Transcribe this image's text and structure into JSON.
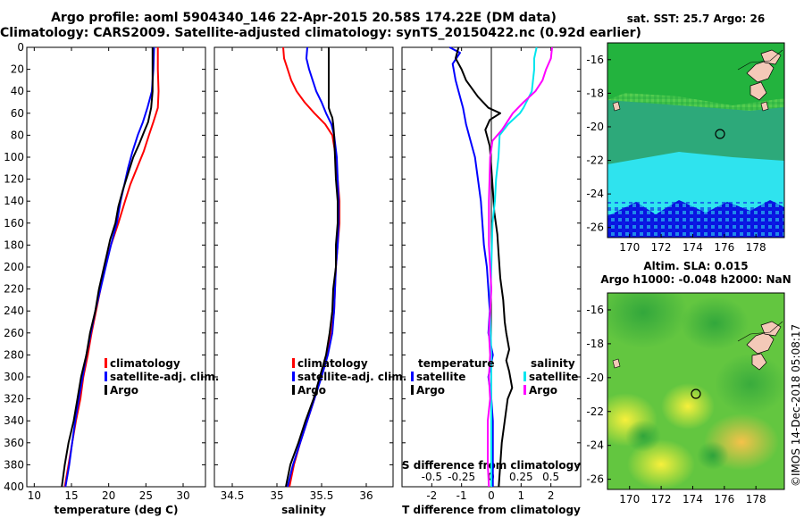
{
  "header": {
    "line1": "Argo profile: aoml 5904340_146 22-Apr-2015 20.58S 174.22E (DM data)",
    "line2": "Climatology: CARS2009. Satellite-adjusted climatology: synTS_20150422.nc (0.92d earlier)"
  },
  "colors": {
    "climatology": "#ff0000",
    "satellite": "#0000ff",
    "argo": "#000000",
    "sat_salinity": "#00e5ee",
    "clim_salinity": "#ff00ff"
  },
  "chart_data": [
    {
      "type": "line",
      "title": "temperature profile",
      "xlabel": "temperature (deg C)",
      "ylabel": "depth",
      "xlim": [
        9,
        33
      ],
      "ylim": [
        0,
        400
      ],
      "x_ticks": [
        "10",
        "15",
        "20",
        "25",
        "30"
      ],
      "y_ticks": [
        "0",
        "20",
        "40",
        "60",
        "80",
        "100",
        "120",
        "140",
        "160",
        "180",
        "200",
        "220",
        "240",
        "260",
        "280",
        "300",
        "320",
        "340",
        "360",
        "380",
        "400"
      ],
      "series": [
        {
          "name": "climatology",
          "color": "#ff0000",
          "points": [
            [
              26.6,
              0
            ],
            [
              26.6,
              20
            ],
            [
              26.7,
              40
            ],
            [
              26.6,
              55
            ],
            [
              26.0,
              68
            ],
            [
              25.4,
              80
            ],
            [
              24.7,
              95
            ],
            [
              23.8,
              110
            ],
            [
              22.9,
              125
            ],
            [
              22.2,
              140
            ],
            [
              21.3,
              160
            ],
            [
              20.3,
              180
            ],
            [
              19.5,
              200
            ],
            [
              18.9,
              220
            ],
            [
              18.3,
              240
            ],
            [
              17.7,
              260
            ],
            [
              17.2,
              280
            ],
            [
              16.6,
              300
            ],
            [
              16.2,
              320
            ],
            [
              15.6,
              340
            ],
            [
              15.1,
              360
            ],
            [
              14.6,
              380
            ],
            [
              14.1,
              400
            ]
          ]
        },
        {
          "name": "satellite-adj. clim.",
          "color": "#0000ff",
          "points": [
            [
              26.1,
              0
            ],
            [
              26.0,
              20
            ],
            [
              25.8,
              40
            ],
            [
              25.2,
              55
            ],
            [
              24.6,
              68
            ],
            [
              23.9,
              80
            ],
            [
              23.2,
              95
            ],
            [
              22.6,
              110
            ],
            [
              22.1,
              125
            ],
            [
              21.6,
              140
            ],
            [
              21.1,
              160
            ],
            [
              20.3,
              180
            ],
            [
              19.6,
              200
            ],
            [
              18.9,
              220
            ],
            [
              18.2,
              240
            ],
            [
              17.6,
              260
            ],
            [
              17.0,
              280
            ],
            [
              16.5,
              300
            ],
            [
              16.0,
              320
            ],
            [
              15.5,
              340
            ],
            [
              15.1,
              360
            ],
            [
              14.7,
              380
            ],
            [
              14.2,
              400
            ]
          ]
        },
        {
          "name": "Argo",
          "color": "#000000",
          "points": [
            [
              25.9,
              0
            ],
            [
              25.9,
              20
            ],
            [
              25.9,
              40
            ],
            [
              25.7,
              55
            ],
            [
              25.3,
              68
            ],
            [
              24.8,
              76
            ],
            [
              24.1,
              88
            ],
            [
              23.3,
              100
            ],
            [
              22.6,
              115
            ],
            [
              21.9,
              130
            ],
            [
              21.3,
              145
            ],
            [
              20.9,
              160
            ],
            [
              20.2,
              175
            ],
            [
              19.7,
              190
            ],
            [
              19.2,
              205
            ],
            [
              18.7,
              220
            ],
            [
              18.2,
              240
            ],
            [
              17.5,
              260
            ],
            [
              17.0,
              280
            ],
            [
              16.3,
              300
            ],
            [
              15.8,
              320
            ],
            [
              15.3,
              340
            ],
            [
              14.6,
              360
            ],
            [
              14.1,
              380
            ],
            [
              13.7,
              400
            ]
          ]
        }
      ],
      "legend": [
        "climatology",
        "satellite-adj. clim.",
        "Argo"
      ],
      "legend_position": "bottom-right"
    },
    {
      "type": "line",
      "title": "salinity profile",
      "xlabel": "salinity",
      "ylabel": "depth",
      "xlim": [
        34.3,
        36.3
      ],
      "ylim": [
        0,
        400
      ],
      "x_ticks": [
        "34.5",
        "35",
        "35.5",
        "36"
      ],
      "series": [
        {
          "name": "climatology",
          "color": "#ff0000",
          "points": [
            [
              35.07,
              0
            ],
            [
              35.08,
              10
            ],
            [
              35.12,
              20
            ],
            [
              35.16,
              30
            ],
            [
              35.22,
              40
            ],
            [
              35.31,
              50
            ],
            [
              35.42,
              60
            ],
            [
              35.54,
              70
            ],
            [
              35.62,
              80
            ],
            [
              35.66,
              100
            ],
            [
              35.68,
              120
            ],
            [
              35.7,
              140
            ],
            [
              35.7,
              160
            ],
            [
              35.68,
              180
            ],
            [
              35.66,
              200
            ],
            [
              35.65,
              220
            ],
            [
              35.64,
              240
            ],
            [
              35.61,
              260
            ],
            [
              35.56,
              280
            ],
            [
              35.49,
              300
            ],
            [
              35.42,
              320
            ],
            [
              35.34,
              340
            ],
            [
              35.26,
              360
            ],
            [
              35.19,
              380
            ],
            [
              35.14,
              400
            ]
          ]
        },
        {
          "name": "satellite-adj. clim.",
          "color": "#0000ff",
          "points": [
            [
              35.34,
              0
            ],
            [
              35.33,
              10
            ],
            [
              35.36,
              20
            ],
            [
              35.4,
              30
            ],
            [
              35.44,
              40
            ],
            [
              35.5,
              50
            ],
            [
              35.55,
              60
            ],
            [
              35.61,
              70
            ],
            [
              35.64,
              80
            ],
            [
              35.67,
              100
            ],
            [
              35.68,
              120
            ],
            [
              35.69,
              140
            ],
            [
              35.69,
              160
            ],
            [
              35.68,
              180
            ],
            [
              35.66,
              200
            ],
            [
              35.65,
              220
            ],
            [
              35.64,
              240
            ],
            [
              35.62,
              260
            ],
            [
              35.57,
              280
            ],
            [
              35.5,
              300
            ],
            [
              35.42,
              320
            ],
            [
              35.34,
              340
            ],
            [
              35.26,
              360
            ],
            [
              35.18,
              380
            ],
            [
              35.12,
              400
            ]
          ]
        },
        {
          "name": "Argo",
          "color": "#000000",
          "points": [
            [
              35.58,
              0
            ],
            [
              35.58,
              20
            ],
            [
              35.58,
              40
            ],
            [
              35.58,
              55
            ],
            [
              35.6,
              60
            ],
            [
              35.62,
              64
            ],
            [
              35.63,
              70
            ],
            [
              35.64,
              80
            ],
            [
              35.65,
              100
            ],
            [
              35.66,
              120
            ],
            [
              35.68,
              140
            ],
            [
              35.68,
              160
            ],
            [
              35.66,
              180
            ],
            [
              35.66,
              200
            ],
            [
              35.63,
              220
            ],
            [
              35.62,
              240
            ],
            [
              35.59,
              260
            ],
            [
              35.55,
              280
            ],
            [
              35.48,
              300
            ],
            [
              35.41,
              320
            ],
            [
              35.32,
              340
            ],
            [
              35.24,
              360
            ],
            [
              35.15,
              380
            ],
            [
              35.1,
              400
            ]
          ]
        }
      ],
      "legend": [
        "climatology",
        "satellite-adj. clim.",
        "Argo"
      ],
      "legend_position": "bottom-right"
    },
    {
      "type": "line",
      "title": "difference from climatology",
      "xlabel": "T difference from climatology",
      "x2label": "S difference from climatology",
      "xlim": [
        -3,
        3
      ],
      "ylim": [
        0,
        400
      ],
      "x_ticks": [
        "-2",
        "-1",
        "0",
        "1",
        "2"
      ],
      "x2_ticks": [
        "-0.5",
        "-0.25",
        "0",
        "0.25",
        "0.5"
      ],
      "series": [
        {
          "name": "T satellite",
          "color": "#0000ff",
          "points": [
            [
              -1.4,
              0
            ],
            [
              -1.05,
              5
            ],
            [
              -1.3,
              15
            ],
            [
              -1.2,
              30
            ],
            [
              -1.1,
              40
            ],
            [
              -0.95,
              55
            ],
            [
              -0.85,
              70
            ],
            [
              -0.7,
              85
            ],
            [
              -0.55,
              100
            ],
            [
              -0.45,
              120
            ],
            [
              -0.35,
              140
            ],
            [
              -0.3,
              160
            ],
            [
              -0.25,
              180
            ],
            [
              -0.15,
              200
            ],
            [
              -0.1,
              220
            ],
            [
              -0.05,
              240
            ],
            [
              -0.1,
              260
            ],
            [
              0.05,
              280
            ],
            [
              -0.1,
              300
            ],
            [
              0.0,
              320
            ],
            [
              0.05,
              340
            ],
            [
              0.05,
              360
            ],
            [
              0.05,
              380
            ],
            [
              0.05,
              400
            ]
          ]
        },
        {
          "name": "T Argo",
          "color": "#000000",
          "points": [
            [
              -1.1,
              0
            ],
            [
              -1.2,
              10
            ],
            [
              -1.0,
              20
            ],
            [
              -0.85,
              30
            ],
            [
              -0.45,
              45
            ],
            [
              -0.1,
              55
            ],
            [
              0.3,
              60
            ],
            [
              -0.05,
              66
            ],
            [
              -0.2,
              75
            ],
            [
              -0.05,
              90
            ],
            [
              0.0,
              110
            ],
            [
              0.05,
              130
            ],
            [
              0.1,
              150
            ],
            [
              0.2,
              170
            ],
            [
              0.25,
              190
            ],
            [
              0.3,
              210
            ],
            [
              0.4,
              230
            ],
            [
              0.45,
              250
            ],
            [
              0.5,
              260
            ],
            [
              0.6,
              275
            ],
            [
              0.5,
              285
            ],
            [
              0.6,
              295
            ],
            [
              0.7,
              310
            ],
            [
              0.55,
              320
            ],
            [
              0.45,
              340
            ],
            [
              0.35,
              360
            ],
            [
              0.3,
              380
            ],
            [
              0.25,
              400
            ]
          ]
        },
        {
          "name": "S satellite",
          "color": "#00e5ee",
          "points": [
            [
              0.38,
              0
            ],
            [
              0.36,
              10
            ],
            [
              0.36,
              20
            ],
            [
              0.34,
              40
            ],
            [
              0.27,
              55
            ],
            [
              0.24,
              60
            ],
            [
              0.14,
              70
            ],
            [
              0.07,
              80
            ],
            [
              0.06,
              100
            ],
            [
              0.04,
              120
            ],
            [
              0.03,
              140
            ],
            [
              0.01,
              160
            ],
            [
              0.0,
              200
            ],
            [
              -0.01,
              240
            ],
            [
              0.0,
              280
            ],
            [
              0.0,
              320
            ],
            [
              0.0,
              360
            ],
            [
              0.0,
              400
            ]
          ]
        },
        {
          "name": "S Argo",
          "color": "#ff00ff",
          "points": [
            [
              0.51,
              0
            ],
            [
              0.5,
              10
            ],
            [
              0.46,
              20
            ],
            [
              0.43,
              30
            ],
            [
              0.37,
              40
            ],
            [
              0.27,
              50
            ],
            [
              0.18,
              60
            ],
            [
              0.09,
              75
            ],
            [
              0.01,
              85
            ],
            [
              -0.01,
              100
            ],
            [
              -0.02,
              140
            ],
            [
              -0.02,
              180
            ],
            [
              0.0,
              220
            ],
            [
              -0.02,
              260
            ],
            [
              -0.01,
              280
            ],
            [
              -0.02,
              300
            ],
            [
              -0.01,
              320
            ],
            [
              -0.03,
              340
            ],
            [
              -0.03,
              360
            ],
            [
              -0.03,
              380
            ],
            [
              -0.02,
              400
            ]
          ]
        }
      ],
      "legend_temperature": [
        "temperature",
        "satellite",
        "Argo"
      ],
      "legend_salinity": [
        "salinity",
        "satellite",
        "Argo"
      ]
    }
  ],
  "map_sst": {
    "caption": "sat. SST: 25.7 Argo: 26",
    "lat_ticks": [
      "-16",
      "-18",
      "-20",
      "-22",
      "-24",
      "-26"
    ],
    "lon_ticks": [
      "170",
      "172",
      "174",
      "176",
      "178"
    ]
  },
  "map_sla": {
    "caption1": "Altim. SLA: 0.015",
    "caption2": "Argo h1000: -0.048 h2000: NaN",
    "lat_ticks": [
      "-16",
      "-18",
      "-20",
      "-22",
      "-24",
      "-26"
    ],
    "lon_ticks": [
      "170",
      "172",
      "174",
      "176",
      "178"
    ]
  },
  "stamp": "©IMOS 14-Dec-2018 05:08:17"
}
